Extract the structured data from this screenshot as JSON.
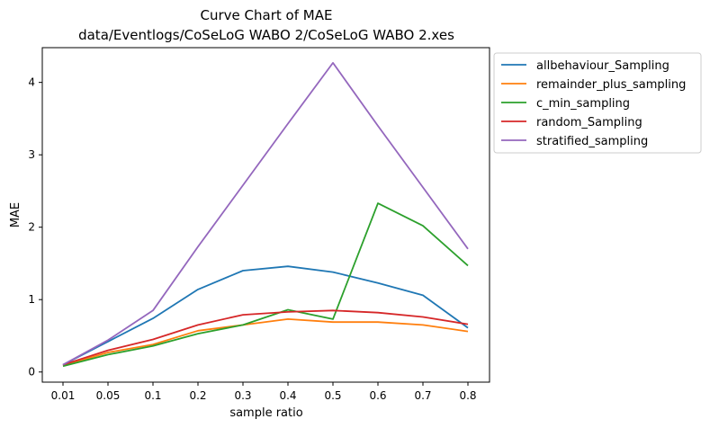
{
  "chart_data": {
    "type": "line",
    "title": "Curve Chart of MAE",
    "subtitle": "data/Eventlogs/CoSeLoG WABO 2/CoSeLoG WABO 2.xes",
    "xlabel": "sample ratio",
    "ylabel": "MAE",
    "categories": [
      "0.01",
      "0.05",
      "0.1",
      "0.2",
      "0.3",
      "0.4",
      "0.5",
      "0.6",
      "0.7",
      "0.8"
    ],
    "ylim": [
      -0.14,
      4.48
    ],
    "yticks": [
      0,
      1,
      2,
      3,
      4
    ],
    "grid": false,
    "legend_position": "outside-top-right",
    "series": [
      {
        "name": "allbehaviour_Sampling",
        "color": "#1f77b4",
        "values": [
          0.1,
          0.42,
          0.74,
          1.14,
          1.4,
          1.46,
          1.38,
          1.23,
          1.06,
          0.61
        ]
      },
      {
        "name": "remainder_plus_sampling",
        "color": "#ff7f0e",
        "values": [
          0.09,
          0.27,
          0.38,
          0.57,
          0.65,
          0.73,
          0.69,
          0.69,
          0.65,
          0.56
        ]
      },
      {
        "name": "c_min_sampling",
        "color": "#2ca02c",
        "values": [
          0.08,
          0.24,
          0.36,
          0.53,
          0.65,
          0.86,
          0.73,
          2.33,
          2.02,
          1.47
        ]
      },
      {
        "name": "random_Sampling",
        "color": "#d62728",
        "values": [
          0.1,
          0.3,
          0.45,
          0.65,
          0.79,
          0.83,
          0.85,
          0.82,
          0.76,
          0.66
        ]
      },
      {
        "name": "stratified_sampling",
        "color": "#9467bd",
        "values": [
          0.1,
          0.44,
          0.85,
          1.73,
          2.58,
          3.43,
          4.27,
          3.4,
          2.55,
          1.7
        ]
      }
    ]
  }
}
